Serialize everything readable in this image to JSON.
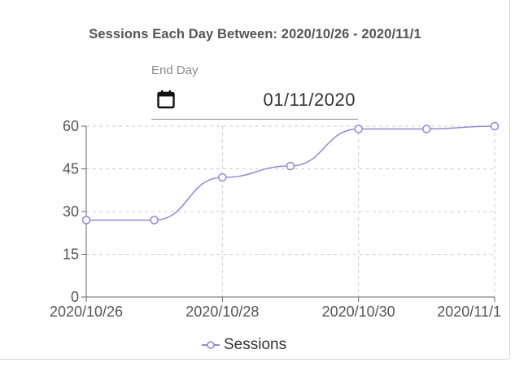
{
  "header": {
    "title": "Sessions Each Day Between: 2020/10/26 - 2020/11/1"
  },
  "end_day": {
    "label": "End Day",
    "value": "01/11/2020",
    "icon": "calendar-icon"
  },
  "colors": {
    "series": "#8c89d9",
    "grid": "#cccccc",
    "axis": "#666666"
  },
  "chart_data": {
    "type": "line",
    "title": "",
    "xlabel": "",
    "ylabel": "",
    "x": [
      "2020/10/26",
      "2020/10/27",
      "2020/10/28",
      "2020/10/29",
      "2020/10/30",
      "2020/10/31",
      "2020/11/1"
    ],
    "x_tick_labels": [
      "2020/10/26",
      "2020/10/28",
      "2020/10/30",
      "2020/11/1"
    ],
    "y_ticks": [
      0,
      15,
      30,
      45,
      60
    ],
    "ylim": [
      0,
      60
    ],
    "grid": true,
    "legend_position": "bottom",
    "series": [
      {
        "name": "Sessions",
        "values": [
          27,
          27,
          42,
          46,
          59,
          59,
          60
        ]
      }
    ]
  }
}
